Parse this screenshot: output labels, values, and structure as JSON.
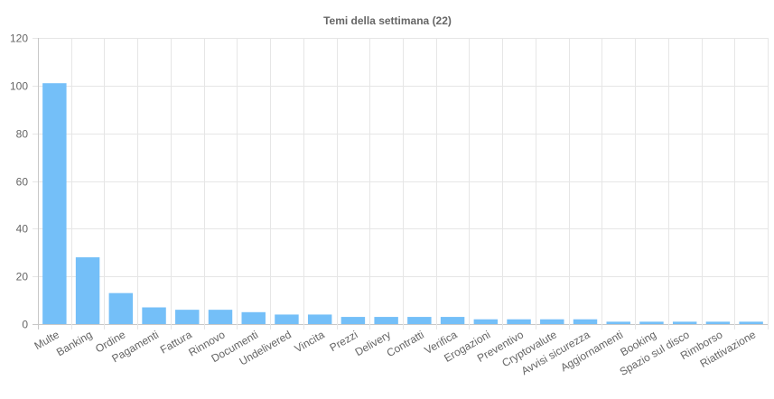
{
  "chart_data": {
    "type": "bar",
    "title": "Temi della settimana (22)",
    "categories": [
      "Multe",
      "Banking",
      "Ordine",
      "Pagamenti",
      "Fattura",
      "Rinnovo",
      "Documenti",
      "Undelivered",
      "Vincita",
      "Prezzi",
      "Delivery",
      "Contratti",
      "Verifica",
      "Erogazioni",
      "Preventivo",
      "Cryptovalute",
      "Avvisi sicurezza",
      "Aggiornamenti",
      "Booking",
      "Spazio sul disco",
      "Rimborso",
      "Riattivazione"
    ],
    "values": [
      101,
      28,
      13,
      7,
      6,
      6,
      5,
      4,
      4,
      3,
      3,
      3,
      3,
      2,
      2,
      2,
      2,
      1,
      1,
      1,
      1,
      1
    ],
    "ylim": [
      0,
      120
    ],
    "yticks": [
      0,
      20,
      40,
      60,
      80,
      100,
      120
    ],
    "grid": true,
    "legend": "none",
    "color": "#74bff8"
  }
}
